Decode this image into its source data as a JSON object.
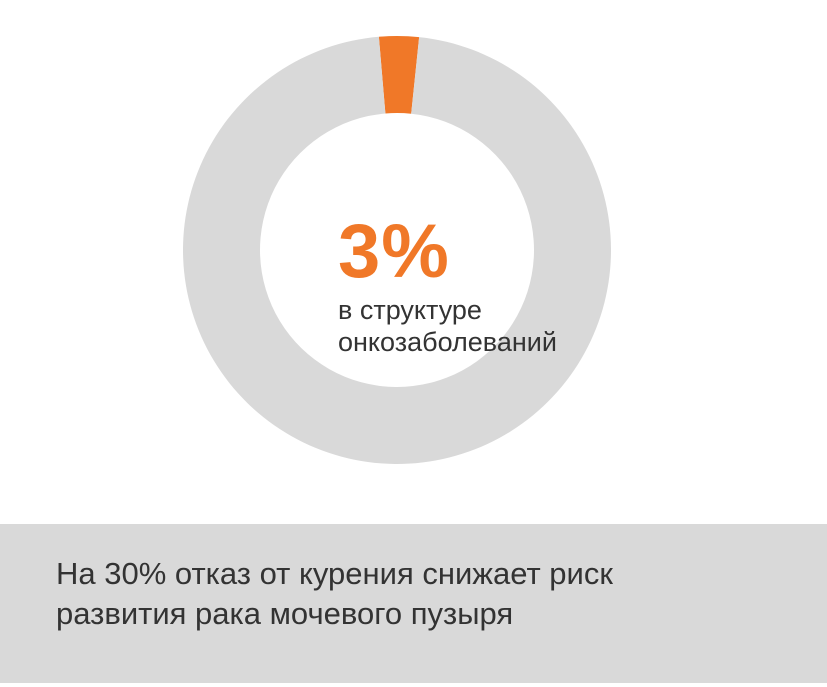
{
  "colors": {
    "accent": "#f07828",
    "ring": "#d9d9d9",
    "text": "#333333",
    "footer_bg": "#d9d9d9"
  },
  "chart_data": {
    "type": "pie",
    "variant": "donut",
    "slices": [
      {
        "value": 3,
        "color": "#f07828"
      },
      {
        "value": 97,
        "color": "#d9d9d9"
      }
    ],
    "center_value": "3%",
    "center_label_lines": [
      "в структуре",
      "онкозаболеваний"
    ]
  },
  "footer": {
    "line1": "На 30% отказ от курения снижает риск",
    "line2": "развития рака мочевого пузыря"
  }
}
